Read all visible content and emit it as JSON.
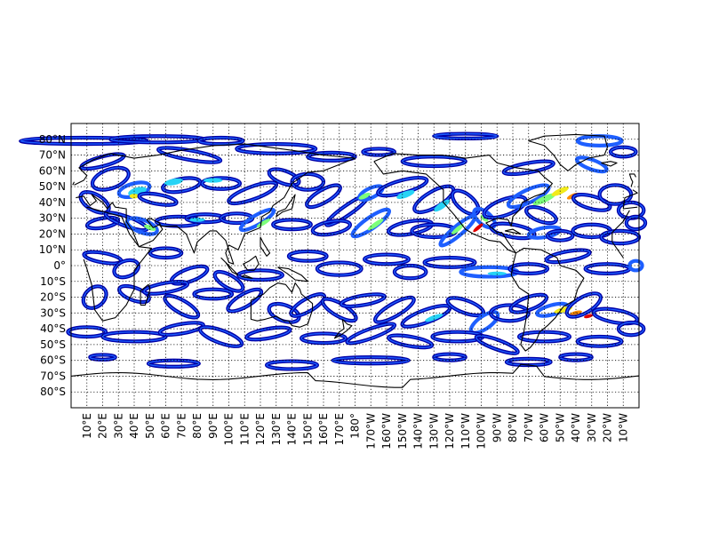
{
  "map": {
    "lat_labels": [
      "80°N",
      "70°N",
      "60°N",
      "50°N",
      "40°N",
      "30°N",
      "20°N",
      "10°N",
      "0°",
      "10°S",
      "20°S",
      "30°S",
      "40°S",
      "50°S",
      "60°S",
      "70°S",
      "80°S"
    ],
    "lon_labels": [
      "10°E",
      "20°E",
      "30°E",
      "40°E",
      "50°E",
      "60°E",
      "70°E",
      "80°E",
      "90°E",
      "100°E",
      "110°E",
      "120°E",
      "130°E",
      "140°E",
      "150°E",
      "160°E",
      "170°E",
      "180°",
      "170°W",
      "160°W",
      "150°W",
      "140°W",
      "130°W",
      "120°W",
      "110°W",
      "100°W",
      "90°W",
      "80°W",
      "70°W",
      "60°W",
      "50°W",
      "40°W",
      "30°W",
      "20°W",
      "10°W"
    ],
    "colors": {
      "level_1": "#0000a8",
      "level_2": "#1e5fff",
      "level_3": "#27d3f5",
      "level_4": "#7dff7a",
      "level_5": "#f2ea1b",
      "level_6": "#ff8c00",
      "level_7": "#e00000",
      "coast": "#000000",
      "grid": "#000000"
    },
    "grid": true
  }
}
